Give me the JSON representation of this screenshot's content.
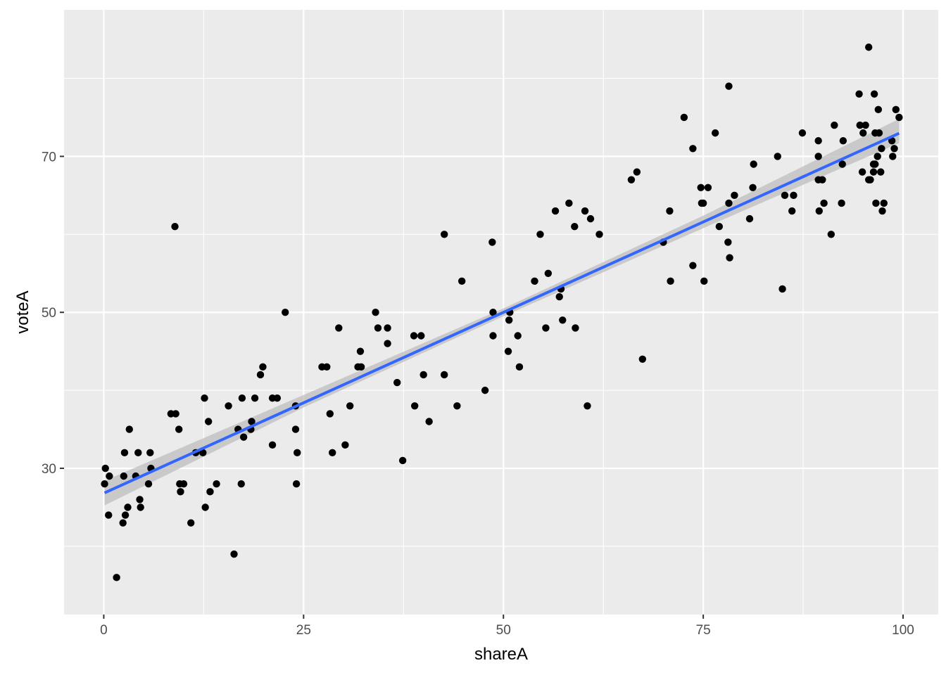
{
  "chart_data": {
    "type": "scatter",
    "xlabel": "shareA",
    "ylabel": "voteA",
    "xlim": [
      -4.97,
      104.4
    ],
    "ylim": [
      11.25,
      88.79
    ],
    "x_ticks": [
      0,
      25,
      50,
      75,
      100
    ],
    "x_tick_labels": [
      "0",
      "25",
      "50",
      "75",
      "100"
    ],
    "y_ticks": [
      30,
      50,
      70
    ],
    "y_tick_labels": [
      "30",
      "50",
      "70"
    ],
    "x_minor": [
      12.5,
      37.5,
      62.5,
      87.5
    ],
    "y_minor": [
      20,
      40,
      60,
      80
    ],
    "grid": true,
    "colors": {
      "panel": "#ebebeb",
      "grid": "#ffffff",
      "points": "#000000",
      "line": "#3366ff",
      "ribbon": "#bebebe"
    },
    "smooth": {
      "method": "lm",
      "intercept": 26.81,
      "slope": 0.4638,
      "x_range": [
        0.1,
        99.5
      ],
      "se_band": [
        {
          "x": 0.1,
          "lo": 25.25,
          "hi": 28.4
        },
        {
          "x": 25,
          "lo": 37.8,
          "hi": 39.4
        },
        {
          "x": 50,
          "lo": 49.5,
          "hi": 50.5
        },
        {
          "x": 75,
          "lo": 60.8,
          "hi": 62.4
        },
        {
          "x": 99.5,
          "lo": 71.7,
          "hi": 74.8
        }
      ]
    },
    "points": [
      [
        0.1,
        28
      ],
      [
        0.2,
        30
      ],
      [
        0.7,
        29
      ],
      [
        0.6,
        24
      ],
      [
        1.6,
        16
      ],
      [
        2.4,
        23
      ],
      [
        2.5,
        29
      ],
      [
        2.6,
        32
      ],
      [
        2.7,
        24
      ],
      [
        3.0,
        25
      ],
      [
        3.2,
        35
      ],
      [
        4.0,
        29
      ],
      [
        4.3,
        32
      ],
      [
        4.5,
        26
      ],
      [
        4.6,
        25
      ],
      [
        5.6,
        28
      ],
      [
        5.8,
        32
      ],
      [
        5.9,
        30
      ],
      [
        8.4,
        37
      ],
      [
        9.0,
        37
      ],
      [
        8.9,
        61
      ],
      [
        9.4,
        35
      ],
      [
        9.5,
        28
      ],
      [
        9.6,
        27
      ],
      [
        10.0,
        28
      ],
      [
        10.9,
        23
      ],
      [
        11.5,
        32
      ],
      [
        12.4,
        32
      ],
      [
        12.6,
        39
      ],
      [
        12.7,
        25
      ],
      [
        13.1,
        36
      ],
      [
        13.3,
        27
      ],
      [
        14.1,
        28
      ],
      [
        15.6,
        38
      ],
      [
        16.3,
        19
      ],
      [
        16.8,
        35
      ],
      [
        17.2,
        28
      ],
      [
        17.3,
        39
      ],
      [
        17.5,
        34
      ],
      [
        18.5,
        36
      ],
      [
        18.4,
        35
      ],
      [
        18.9,
        39
      ],
      [
        19.6,
        42
      ],
      [
        19.9,
        43
      ],
      [
        21.1,
        39
      ],
      [
        21.1,
        33
      ],
      [
        21.7,
        39
      ],
      [
        22.7,
        50
      ],
      [
        24.0,
        38
      ],
      [
        24.0,
        35
      ],
      [
        24.1,
        28
      ],
      [
        24.2,
        32
      ],
      [
        27.3,
        43
      ],
      [
        27.9,
        43
      ],
      [
        28.3,
        37
      ],
      [
        28.6,
        32
      ],
      [
        29.4,
        48
      ],
      [
        30.2,
        33
      ],
      [
        30.8,
        38
      ],
      [
        31.8,
        43
      ],
      [
        32.1,
        45
      ],
      [
        32.2,
        43
      ],
      [
        34.0,
        50
      ],
      [
        34.3,
        48
      ],
      [
        35.5,
        48
      ],
      [
        35.5,
        46
      ],
      [
        36.7,
        41
      ],
      [
        37.4,
        31
      ],
      [
        38.8,
        47
      ],
      [
        38.9,
        38
      ],
      [
        39.7,
        47
      ],
      [
        40.0,
        42
      ],
      [
        40.7,
        36
      ],
      [
        42.6,
        60
      ],
      [
        42.6,
        42
      ],
      [
        44.2,
        38
      ],
      [
        44.8,
        54
      ],
      [
        47.7,
        40
      ],
      [
        48.6,
        59
      ],
      [
        48.7,
        50
      ],
      [
        48.7,
        47
      ],
      [
        50.6,
        45
      ],
      [
        50.7,
        49
      ],
      [
        50.8,
        50
      ],
      [
        51.8,
        47
      ],
      [
        52.0,
        43
      ],
      [
        53.9,
        54
      ],
      [
        54.6,
        60
      ],
      [
        55.3,
        48
      ],
      [
        55.6,
        55
      ],
      [
        56.5,
        63
      ],
      [
        57.0,
        52
      ],
      [
        57.2,
        53
      ],
      [
        57.4,
        49
      ],
      [
        58.2,
        64
      ],
      [
        58.9,
        61
      ],
      [
        59.0,
        48
      ],
      [
        60.2,
        63
      ],
      [
        60.5,
        38
      ],
      [
        60.9,
        62
      ],
      [
        62.0,
        60
      ],
      [
        66.0,
        67
      ],
      [
        66.7,
        68
      ],
      [
        67.4,
        44
      ],
      [
        70.0,
        59
      ],
      [
        70.8,
        63
      ],
      [
        70.9,
        54
      ],
      [
        72.6,
        75
      ],
      [
        73.7,
        71
      ],
      [
        73.7,
        56
      ],
      [
        74.7,
        66
      ],
      [
        74.8,
        64
      ],
      [
        75.0,
        64
      ],
      [
        75.1,
        54
      ],
      [
        75.6,
        66
      ],
      [
        76.5,
        73
      ],
      [
        77.0,
        61
      ],
      [
        78.1,
        59
      ],
      [
        78.2,
        79
      ],
      [
        78.2,
        64
      ],
      [
        78.3,
        57
      ],
      [
        78.9,
        65
      ],
      [
        80.8,
        62
      ],
      [
        81.2,
        66
      ],
      [
        81.3,
        69
      ],
      [
        84.3,
        70
      ],
      [
        84.9,
        53
      ],
      [
        85.2,
        65
      ],
      [
        86.1,
        63
      ],
      [
        86.3,
        65
      ],
      [
        87.4,
        73
      ],
      [
        89.4,
        72
      ],
      [
        89.4,
        70
      ],
      [
        89.4,
        67
      ],
      [
        89.5,
        63
      ],
      [
        89.9,
        67
      ],
      [
        90.1,
        64
      ],
      [
        91.0,
        60
      ],
      [
        91.4,
        74
      ],
      [
        92.3,
        64
      ],
      [
        92.4,
        69
      ],
      [
        92.5,
        72
      ],
      [
        94.5,
        78
      ],
      [
        94.6,
        74
      ],
      [
        94.9,
        68
      ],
      [
        95.0,
        73
      ],
      [
        95.3,
        74
      ],
      [
        95.7,
        84
      ],
      [
        95.7,
        67
      ],
      [
        95.9,
        67
      ],
      [
        96.3,
        69
      ],
      [
        96.3,
        68
      ],
      [
        96.4,
        78
      ],
      [
        96.5,
        69
      ],
      [
        96.5,
        73
      ],
      [
        96.6,
        64
      ],
      [
        96.8,
        70
      ],
      [
        96.9,
        76
      ],
      [
        97.0,
        73
      ],
      [
        97.2,
        68
      ],
      [
        97.3,
        71
      ],
      [
        97.4,
        63
      ],
      [
        97.6,
        64
      ],
      [
        98.6,
        72
      ],
      [
        98.7,
        70
      ],
      [
        98.9,
        71
      ],
      [
        99.1,
        76
      ],
      [
        99.5,
        75
      ]
    ]
  }
}
